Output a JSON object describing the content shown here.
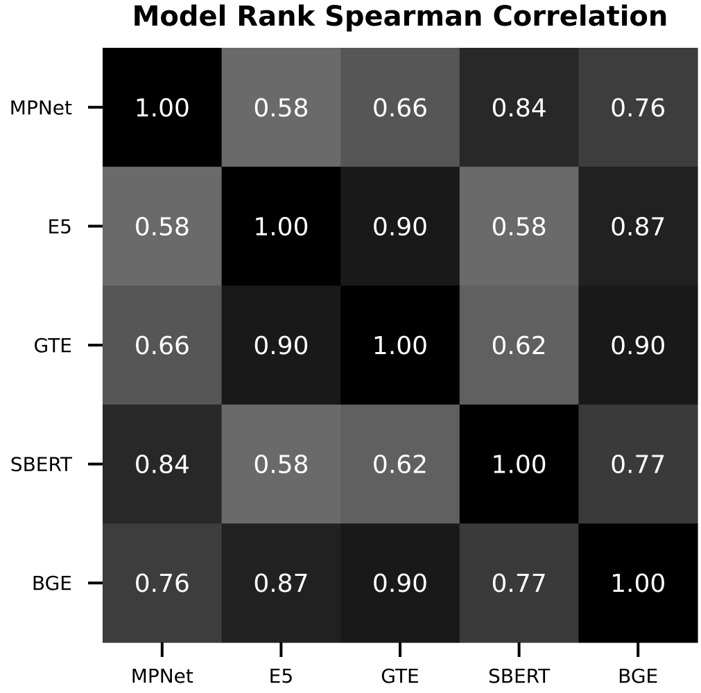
{
  "chart_data": {
    "type": "heatmap",
    "title": "Model Rank Spearman Correlation",
    "xlabel": "",
    "ylabel": "",
    "x_categories": [
      "MPNet",
      "E5",
      "GTE",
      "SBERT",
      "BGE"
    ],
    "y_categories": [
      "MPNet",
      "E5",
      "GTE",
      "SBERT",
      "BGE"
    ],
    "values": [
      [
        1.0,
        0.58,
        0.66,
        0.84,
        0.76
      ],
      [
        0.58,
        1.0,
        0.9,
        0.58,
        0.87
      ],
      [
        0.66,
        0.9,
        1.0,
        0.62,
        0.9
      ],
      [
        0.84,
        0.58,
        0.62,
        1.0,
        0.77
      ],
      [
        0.76,
        0.87,
        0.9,
        0.77,
        1.0
      ]
    ],
    "value_format": "0.00",
    "colormap": "gray",
    "color_range": [
      0.58,
      1.0
    ],
    "color_low": "#6a6a6a",
    "color_high": "#000000",
    "annotation_color": "#ffffff",
    "colorbar": false
  }
}
